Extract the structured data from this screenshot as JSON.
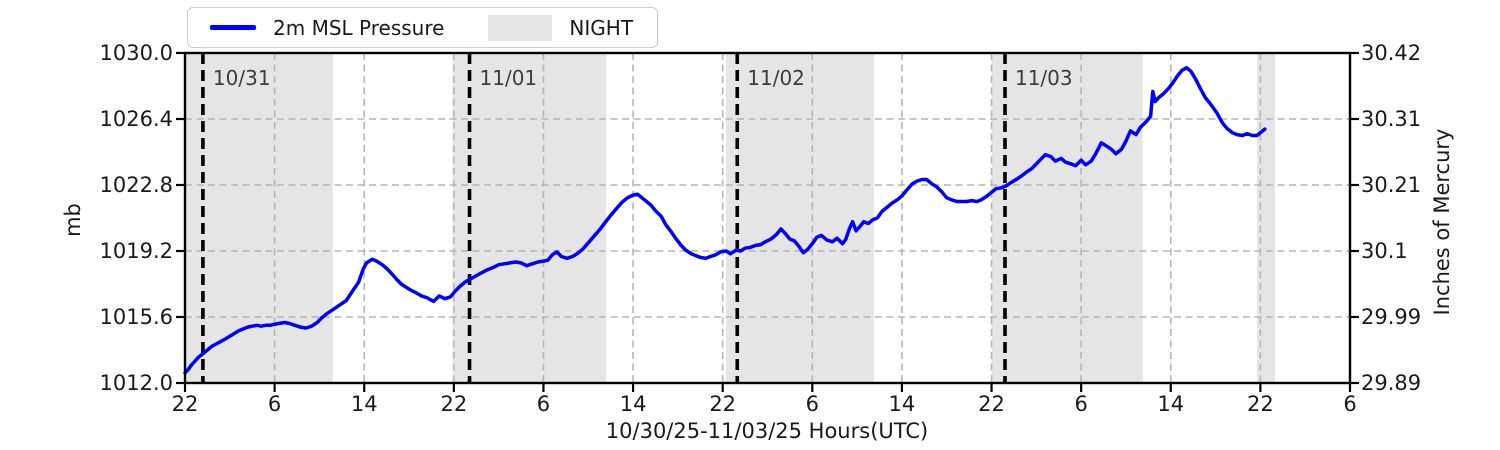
{
  "chart_data": {
    "type": "line",
    "title": "",
    "xlabel": "10/30/25-11/03/25  Hours(UTC)",
    "ylabel_left": "mb",
    "ylabel_right": "Inches of Mercury",
    "xlim_hours": [
      0,
      104
    ],
    "ylim_left": [
      1012.0,
      1030.0
    ],
    "grid": true,
    "legend_position": "top-left",
    "legend": [
      {
        "label": "2m MSL Pressure",
        "type": "line",
        "color": "#0000ff"
      },
      {
        "label": "NIGHT",
        "type": "patch",
        "color": "#e5e5e5"
      }
    ],
    "x_ticks": {
      "step_hours": 8,
      "labels": [
        "22",
        "6",
        "14",
        "22",
        "6",
        "14",
        "22",
        "6",
        "14",
        "22",
        "6",
        "14",
        "22",
        "6"
      ]
    },
    "y_ticks_left": [
      {
        "value": 1030.0,
        "label": "1030.0"
      },
      {
        "value": 1026.4,
        "label": "1026.4"
      },
      {
        "value": 1022.8,
        "label": "1022.8"
      },
      {
        "value": 1019.2,
        "label": "1019.2"
      },
      {
        "value": 1015.6,
        "label": "1015.6"
      },
      {
        "value": 1012.0,
        "label": "1012.0"
      }
    ],
    "y_ticks_right": [
      "30.42",
      "30.31",
      "30.21",
      "30.1",
      "29.99",
      "29.89"
    ],
    "night_bands_hours": [
      [
        0,
        13.2
      ],
      [
        23.9,
        37.6
      ],
      [
        48.3,
        61.5
      ],
      [
        72.0,
        85.5
      ],
      [
        95.7,
        97.3
      ]
    ],
    "date_lines": [
      {
        "hour": 1.6,
        "label": "10/31"
      },
      {
        "hour": 25.4,
        "label": "11/01"
      },
      {
        "hour": 49.3,
        "label": "11/02"
      },
      {
        "hour": 73.2,
        "label": "11/03"
      }
    ],
    "colors": {
      "line": "#0000ff",
      "night": "#e5e5e5",
      "grid": "#b5b5b5",
      "frame": "#000000",
      "date_line": "#000000",
      "date_label": "#3d3d3d",
      "text": "#1a1a1a"
    },
    "series": [
      {
        "name": "2m MSL Pressure",
        "color": "#0000ff",
        "x_unit": "hours since 10/30/25 22:00 UTC",
        "y_unit": "mb",
        "points": [
          [
            0,
            1012.55
          ],
          [
            0.3,
            1012.75
          ],
          [
            0.6,
            1013.0
          ],
          [
            0.9,
            1013.2
          ],
          [
            1.2,
            1013.4
          ],
          [
            1.5,
            1013.55
          ],
          [
            1.8,
            1013.7
          ],
          [
            2.1,
            1013.85
          ],
          [
            2.4,
            1014.0
          ],
          [
            2.7,
            1014.1
          ],
          [
            3.0,
            1014.2
          ],
          [
            3.3,
            1014.3
          ],
          [
            3.6,
            1014.4
          ],
          [
            4.0,
            1014.55
          ],
          [
            4.4,
            1014.7
          ],
          [
            4.8,
            1014.85
          ],
          [
            5.2,
            1014.95
          ],
          [
            5.6,
            1015.05
          ],
          [
            6.0,
            1015.1
          ],
          [
            6.4,
            1015.15
          ],
          [
            6.8,
            1015.1
          ],
          [
            7.2,
            1015.15
          ],
          [
            7.6,
            1015.15
          ],
          [
            8.0,
            1015.2
          ],
          [
            8.4,
            1015.25
          ],
          [
            8.9,
            1015.3
          ],
          [
            9.3,
            1015.25
          ],
          [
            9.8,
            1015.15
          ],
          [
            10.3,
            1015.05
          ],
          [
            10.8,
            1015.0
          ],
          [
            11.3,
            1015.1
          ],
          [
            11.8,
            1015.3
          ],
          [
            12.2,
            1015.55
          ],
          [
            12.7,
            1015.8
          ],
          [
            13.2,
            1016.0
          ],
          [
            13.8,
            1016.25
          ],
          [
            14.4,
            1016.5
          ],
          [
            15.0,
            1017.05
          ],
          [
            15.5,
            1017.5
          ],
          [
            15.9,
            1018.2
          ],
          [
            16.2,
            1018.55
          ],
          [
            16.7,
            1018.75
          ],
          [
            17.1,
            1018.65
          ],
          [
            17.6,
            1018.45
          ],
          [
            18.0,
            1018.25
          ],
          [
            18.4,
            1018.0
          ],
          [
            18.9,
            1017.65
          ],
          [
            19.3,
            1017.4
          ],
          [
            19.8,
            1017.2
          ],
          [
            20.2,
            1017.05
          ],
          [
            20.7,
            1016.9
          ],
          [
            21.1,
            1016.75
          ],
          [
            21.6,
            1016.65
          ],
          [
            22.2,
            1016.45
          ],
          [
            22.7,
            1016.75
          ],
          [
            23.2,
            1016.6
          ],
          [
            23.7,
            1016.7
          ],
          [
            24.1,
            1017.0
          ],
          [
            24.6,
            1017.3
          ],
          [
            25.1,
            1017.55
          ],
          [
            25.7,
            1017.75
          ],
          [
            26.3,
            1017.95
          ],
          [
            26.9,
            1018.15
          ],
          [
            27.5,
            1018.3
          ],
          [
            28.0,
            1018.45
          ],
          [
            28.5,
            1018.5
          ],
          [
            29.0,
            1018.55
          ],
          [
            29.5,
            1018.6
          ],
          [
            30.0,
            1018.55
          ],
          [
            30.5,
            1018.4
          ],
          [
            31.0,
            1018.5
          ],
          [
            31.5,
            1018.6
          ],
          [
            32.0,
            1018.65
          ],
          [
            32.4,
            1018.7
          ],
          [
            32.8,
            1019.0
          ],
          [
            33.2,
            1019.15
          ],
          [
            33.6,
            1018.9
          ],
          [
            34.1,
            1018.8
          ],
          [
            34.6,
            1018.9
          ],
          [
            35.0,
            1019.05
          ],
          [
            35.5,
            1019.3
          ],
          [
            36.0,
            1019.65
          ],
          [
            36.5,
            1020.0
          ],
          [
            37.0,
            1020.35
          ],
          [
            37.5,
            1020.75
          ],
          [
            38.0,
            1021.15
          ],
          [
            38.5,
            1021.5
          ],
          [
            39.0,
            1021.85
          ],
          [
            39.5,
            1022.1
          ],
          [
            40.0,
            1022.25
          ],
          [
            40.4,
            1022.3
          ],
          [
            40.8,
            1022.1
          ],
          [
            41.2,
            1021.9
          ],
          [
            41.6,
            1021.7
          ],
          [
            42.0,
            1021.4
          ],
          [
            42.5,
            1021.1
          ],
          [
            42.9,
            1020.65
          ],
          [
            43.4,
            1020.25
          ],
          [
            43.8,
            1019.9
          ],
          [
            44.3,
            1019.5
          ],
          [
            44.7,
            1019.25
          ],
          [
            45.2,
            1019.05
          ],
          [
            45.6,
            1018.95
          ],
          [
            46.0,
            1018.85
          ],
          [
            46.5,
            1018.8
          ],
          [
            46.9,
            1018.9
          ],
          [
            47.4,
            1019.0
          ],
          [
            47.8,
            1019.15
          ],
          [
            48.3,
            1019.2
          ],
          [
            48.7,
            1019.05
          ],
          [
            49.2,
            1019.25
          ],
          [
            49.6,
            1019.2
          ],
          [
            50.0,
            1019.35
          ],
          [
            50.5,
            1019.4
          ],
          [
            50.9,
            1019.5
          ],
          [
            51.4,
            1019.55
          ],
          [
            51.8,
            1019.7
          ],
          [
            52.3,
            1019.85
          ],
          [
            52.8,
            1020.1
          ],
          [
            53.2,
            1020.4
          ],
          [
            53.6,
            1020.15
          ],
          [
            54.0,
            1019.85
          ],
          [
            54.4,
            1019.75
          ],
          [
            54.8,
            1019.45
          ],
          [
            55.2,
            1019.1
          ],
          [
            55.6,
            1019.3
          ],
          [
            56.0,
            1019.6
          ],
          [
            56.4,
            1019.95
          ],
          [
            56.8,
            1020.05
          ],
          [
            57.3,
            1019.8
          ],
          [
            57.8,
            1019.7
          ],
          [
            58.2,
            1019.9
          ],
          [
            58.7,
            1019.6
          ],
          [
            59.0,
            1019.85
          ],
          [
            59.3,
            1020.4
          ],
          [
            59.6,
            1020.8
          ],
          [
            59.9,
            1020.3
          ],
          [
            60.2,
            1020.5
          ],
          [
            60.6,
            1020.8
          ],
          [
            61.0,
            1020.7
          ],
          [
            61.4,
            1020.9
          ],
          [
            61.8,
            1021.0
          ],
          [
            62.2,
            1021.35
          ],
          [
            62.7,
            1021.6
          ],
          [
            63.1,
            1021.8
          ],
          [
            63.6,
            1022.0
          ],
          [
            64.0,
            1022.2
          ],
          [
            64.4,
            1022.5
          ],
          [
            64.9,
            1022.85
          ],
          [
            65.3,
            1023.0
          ],
          [
            65.8,
            1023.1
          ],
          [
            66.2,
            1023.1
          ],
          [
            66.7,
            1022.85
          ],
          [
            67.1,
            1022.7
          ],
          [
            67.6,
            1022.4
          ],
          [
            68.0,
            1022.1
          ],
          [
            68.4,
            1022.0
          ],
          [
            68.9,
            1021.9
          ],
          [
            69.3,
            1021.9
          ],
          [
            69.8,
            1021.9
          ],
          [
            70.2,
            1021.95
          ],
          [
            70.7,
            1021.9
          ],
          [
            71.1,
            1022.0
          ],
          [
            71.6,
            1022.2
          ],
          [
            72.0,
            1022.4
          ],
          [
            72.4,
            1022.6
          ],
          [
            72.9,
            1022.65
          ],
          [
            73.3,
            1022.75
          ],
          [
            73.8,
            1022.95
          ],
          [
            74.2,
            1023.1
          ],
          [
            74.7,
            1023.3
          ],
          [
            75.1,
            1023.5
          ],
          [
            75.6,
            1023.7
          ],
          [
            76.0,
            1023.95
          ],
          [
            76.4,
            1024.2
          ],
          [
            76.8,
            1024.45
          ],
          [
            77.3,
            1024.35
          ],
          [
            77.7,
            1024.1
          ],
          [
            78.2,
            1024.25
          ],
          [
            78.6,
            1024.05
          ],
          [
            79.1,
            1023.95
          ],
          [
            79.5,
            1023.85
          ],
          [
            80.0,
            1024.15
          ],
          [
            80.4,
            1023.9
          ],
          [
            80.9,
            1024.1
          ],
          [
            81.3,
            1024.5
          ],
          [
            81.8,
            1025.1
          ],
          [
            82.2,
            1024.95
          ],
          [
            82.7,
            1024.75
          ],
          [
            83.1,
            1024.5
          ],
          [
            83.6,
            1024.75
          ],
          [
            84.0,
            1025.2
          ],
          [
            84.4,
            1025.75
          ],
          [
            84.9,
            1025.55
          ],
          [
            85.3,
            1025.95
          ],
          [
            85.8,
            1026.25
          ],
          [
            86.2,
            1026.55
          ],
          [
            86.4,
            1027.9
          ],
          [
            86.6,
            1027.35
          ],
          [
            86.9,
            1027.55
          ],
          [
            87.3,
            1027.75
          ],
          [
            87.7,
            1028.0
          ],
          [
            88.1,
            1028.3
          ],
          [
            88.6,
            1028.75
          ],
          [
            89.0,
            1029.05
          ],
          [
            89.4,
            1029.2
          ],
          [
            89.8,
            1029.0
          ],
          [
            90.2,
            1028.6
          ],
          [
            90.7,
            1028.0
          ],
          [
            91.1,
            1027.55
          ],
          [
            91.5,
            1027.25
          ],
          [
            92.1,
            1026.75
          ],
          [
            92.6,
            1026.2
          ],
          [
            93.0,
            1025.9
          ],
          [
            93.5,
            1025.65
          ],
          [
            93.9,
            1025.55
          ],
          [
            94.4,
            1025.5
          ],
          [
            94.8,
            1025.6
          ],
          [
            95.3,
            1025.5
          ],
          [
            95.7,
            1025.5
          ],
          [
            96.0,
            1025.65
          ],
          [
            96.4,
            1025.85
          ]
        ]
      }
    ]
  }
}
